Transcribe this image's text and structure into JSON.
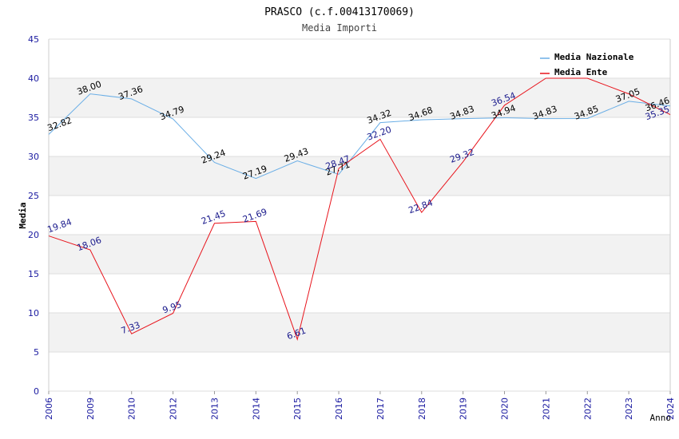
{
  "chart_data": {
    "type": "line",
    "title": "PRASCO (c.f.00413170069)",
    "subtitle": "Media Importi",
    "xlabel": "Anno",
    "ylabel": "Media",
    "ylim": [
      0,
      45
    ],
    "ytick_step": 5,
    "grid": true,
    "legend_position": "top-right",
    "categories": [
      "2006",
      "2009",
      "2010",
      "2012",
      "2013",
      "2014",
      "2015",
      "2016",
      "2017",
      "2018",
      "2019",
      "2020",
      "2021",
      "2022",
      "2023",
      "2024"
    ],
    "series": [
      {
        "name": "Media Nazionale",
        "color": "#6aaee6",
        "label_color": "#000000",
        "values": [
          32.82,
          38.0,
          37.36,
          34.79,
          29.24,
          27.19,
          29.43,
          27.71,
          34.32,
          34.68,
          34.83,
          34.94,
          34.83,
          34.85,
          37.05,
          36.46
        ]
      },
      {
        "name": "Media Ente",
        "color": "#e8141c",
        "label_color": "#1a1a8c",
        "values": [
          19.84,
          18.06,
          7.33,
          9.95,
          21.45,
          21.69,
          6.61,
          28.47,
          32.2,
          22.84,
          29.32,
          36.54,
          40.0,
          40.0,
          38.0,
          35.35
        ],
        "labels": [
          "19.84",
          "18.06",
          "7.33",
          "9.95",
          "21.45",
          "21.69",
          "6.61",
          "28.47",
          "32.20",
          "22.84",
          "29.32",
          "36.54",
          "",
          "",
          "",
          "35.35"
        ]
      }
    ],
    "colors": {
      "axis_tick": "#1a1aa0",
      "band": "#f2f2f2",
      "gridline": "#dddddd",
      "axis_line": "#cccccc"
    }
  }
}
